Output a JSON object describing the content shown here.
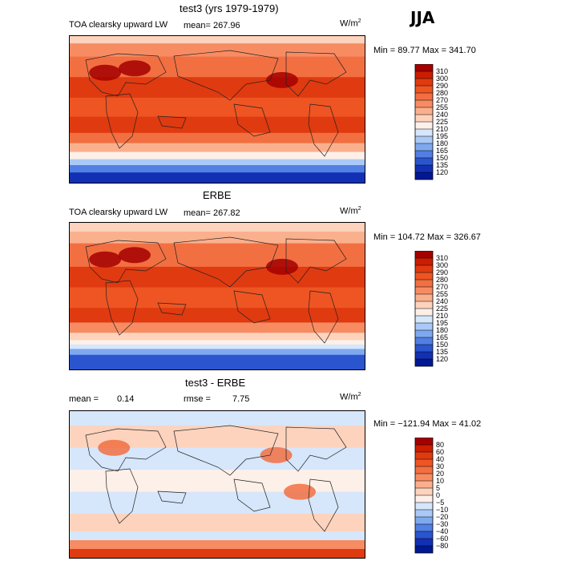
{
  "header": {
    "season": "JJA"
  },
  "panels": [
    {
      "title": "test3 (yrs 1979-1979)",
      "variable": "TOA clearsky upward LW",
      "mean_text": "mean= 267.96",
      "units": "W/m",
      "units_sup": "2",
      "minmax": "Min =  89.77 Max = 341.70",
      "colorbar": {
        "labels": [
          "310",
          "300",
          "290",
          "280",
          "270",
          "255",
          "240",
          "225",
          "210",
          "195",
          "180",
          "165",
          "150",
          "135",
          "120"
        ],
        "colors": [
          "#a50000",
          "#cc1d00",
          "#e03a10",
          "#ee5522",
          "#f26f42",
          "#f78c63",
          "#fab08d",
          "#fdd3bd",
          "#fdf0e8",
          "#d6e6fb",
          "#abc9f6",
          "#7fa9ef",
          "#517fe3",
          "#2a55cf",
          "#1230b3",
          "#001894"
        ]
      },
      "map": {
        "bands": [
          {
            "frac": 0.0,
            "color": "#fdd3bd"
          },
          {
            "frac": 0.05,
            "color": "#f78c63"
          },
          {
            "frac": 0.14,
            "color": "#f26f42"
          },
          {
            "frac": 0.28,
            "color": "#e03a10"
          },
          {
            "frac": 0.42,
            "color": "#ee5522"
          },
          {
            "frac": 0.55,
            "color": "#e03a10"
          },
          {
            "frac": 0.66,
            "color": "#f26f42"
          },
          {
            "frac": 0.73,
            "color": "#fab08d"
          },
          {
            "frac": 0.79,
            "color": "#fdf0e8"
          },
          {
            "frac": 0.84,
            "color": "#abc9f6"
          },
          {
            "frac": 0.88,
            "color": "#517fe3"
          },
          {
            "frac": 0.93,
            "color": "#1230b3"
          },
          {
            "frac": 1.0,
            "color": "#001894"
          }
        ],
        "hot": "#a50000"
      }
    },
    {
      "title": "ERBE",
      "variable": "TOA clearsky upward LW",
      "mean_text": "mean= 267.82",
      "units": "W/m",
      "units_sup": "2",
      "minmax": "Min = 104.72 Max = 326.67",
      "colorbar": {
        "labels": [
          "310",
          "300",
          "290",
          "280",
          "270",
          "255",
          "240",
          "225",
          "210",
          "195",
          "180",
          "165",
          "150",
          "135",
          "120"
        ],
        "colors": [
          "#a50000",
          "#cc1d00",
          "#e03a10",
          "#ee5522",
          "#f26f42",
          "#f78c63",
          "#fab08d",
          "#fdd3bd",
          "#fdf0e8",
          "#d6e6fb",
          "#abc9f6",
          "#7fa9ef",
          "#517fe3",
          "#2a55cf",
          "#1230b3",
          "#001894"
        ]
      },
      "map": {
        "bands": [
          {
            "frac": 0.0,
            "color": "#fdd3bd"
          },
          {
            "frac": 0.06,
            "color": "#fab08d"
          },
          {
            "frac": 0.14,
            "color": "#f26f42"
          },
          {
            "frac": 0.3,
            "color": "#e03a10"
          },
          {
            "frac": 0.44,
            "color": "#ee5522"
          },
          {
            "frac": 0.58,
            "color": "#e03a10"
          },
          {
            "frac": 0.68,
            "color": "#f78c63"
          },
          {
            "frac": 0.75,
            "color": "#fdd3bd"
          },
          {
            "frac": 0.8,
            "color": "#fdf0e8"
          },
          {
            "frac": 0.83,
            "color": "#d6e6fb"
          },
          {
            "frac": 0.86,
            "color": "#7fa9ef"
          },
          {
            "frac": 0.9,
            "color": "#2a55cf"
          },
          {
            "frac": 1.0,
            "color": "#001894"
          }
        ],
        "hot": "#a50000"
      }
    },
    {
      "title": "test3 - ERBE",
      "mean_label": "mean =",
      "mean_value": "0.14",
      "rmse_label": "rmse =",
      "rmse_value": "7.75",
      "units": "W/m",
      "units_sup": "2",
      "minmax": "Min = −121.94 Max =  41.02",
      "colorbar": {
        "labels": [
          "80",
          "60",
          "40",
          "30",
          "20",
          "10",
          "5",
          "0",
          "−5",
          "−10",
          "−20",
          "−30",
          "−40",
          "−60",
          "−80"
        ],
        "colors": [
          "#a50000",
          "#cc1d00",
          "#e03a10",
          "#ee5522",
          "#f26f42",
          "#f78c63",
          "#fab08d",
          "#fdd3bd",
          "#fdf0e8",
          "#d6e6fb",
          "#abc9f6",
          "#7fa9ef",
          "#517fe3",
          "#2a55cf",
          "#1230b3",
          "#001894"
        ]
      },
      "map": {
        "bands": [
          {
            "frac": 0.0,
            "color": "#d6e6fb"
          },
          {
            "frac": 0.1,
            "color": "#fdd3bd"
          },
          {
            "frac": 0.25,
            "color": "#d6e6fb"
          },
          {
            "frac": 0.4,
            "color": "#fdf0e8"
          },
          {
            "frac": 0.55,
            "color": "#d6e6fb"
          },
          {
            "frac": 0.7,
            "color": "#fdd3bd"
          },
          {
            "frac": 0.82,
            "color": "#d6e6fb"
          },
          {
            "frac": 0.88,
            "color": "#f78c63"
          },
          {
            "frac": 0.94,
            "color": "#e03a10"
          },
          {
            "frac": 1.0,
            "color": "#d6e6fb"
          }
        ],
        "hot": "#f26f42"
      }
    }
  ]
}
